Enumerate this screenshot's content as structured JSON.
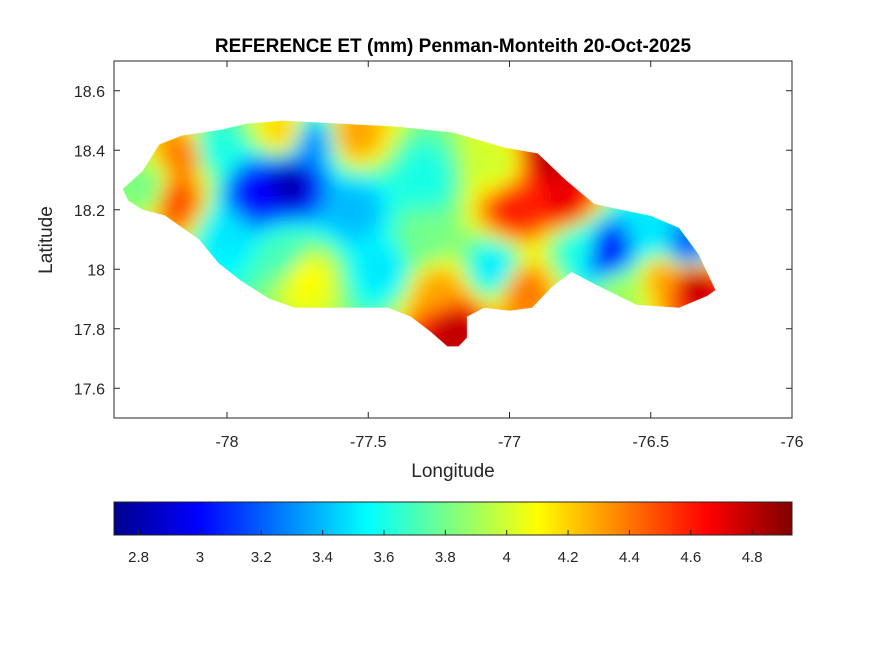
{
  "map": {
    "title": "REFERENCE ET (mm) Penman-Monteith 20-Oct-2025",
    "xlabel": "Longitude",
    "ylabel": "Latitude",
    "x_range": [
      -78.4,
      -76.0
    ],
    "y_range": [
      17.5,
      18.7
    ],
    "x_ticks": [
      -78,
      -77.5,
      -77,
      -76.5,
      -76
    ],
    "x_tick_labels": [
      "-78",
      "-77.5",
      "-77",
      "-76.5",
      "-76"
    ],
    "y_ticks": [
      17.6,
      17.8,
      18.0,
      18.2,
      18.4,
      18.6
    ],
    "y_tick_labels": [
      "17.6",
      "17.8",
      "18",
      "18.2",
      "18.4",
      "18.6"
    ],
    "colormap": "jet",
    "units": "mm",
    "region_outline": [
      [
        -78.37,
        18.27
      ],
      [
        -78.3,
        18.33
      ],
      [
        -78.24,
        18.42
      ],
      [
        -78.16,
        18.45
      ],
      [
        -78.02,
        18.47
      ],
      [
        -77.93,
        18.49
      ],
      [
        -77.8,
        18.5
      ],
      [
        -77.6,
        18.49
      ],
      [
        -77.4,
        18.48
      ],
      [
        -77.2,
        18.46
      ],
      [
        -77.02,
        18.41
      ],
      [
        -76.9,
        18.39
      ],
      [
        -76.8,
        18.3
      ],
      [
        -76.7,
        18.22
      ],
      [
        -76.6,
        18.2
      ],
      [
        -76.5,
        18.18
      ],
      [
        -76.4,
        18.14
      ],
      [
        -76.33,
        18.05
      ],
      [
        -76.27,
        17.93
      ],
      [
        -76.3,
        17.91
      ],
      [
        -76.4,
        17.87
      ],
      [
        -76.55,
        17.88
      ],
      [
        -76.7,
        17.95
      ],
      [
        -76.78,
        17.99
      ],
      [
        -76.85,
        17.94
      ],
      [
        -76.92,
        17.87
      ],
      [
        -77.0,
        17.86
      ],
      [
        -77.09,
        17.87
      ],
      [
        -77.15,
        17.84
      ],
      [
        -77.15,
        17.77
      ],
      [
        -77.18,
        17.74
      ],
      [
        -77.22,
        17.74
      ],
      [
        -77.28,
        17.79
      ],
      [
        -77.35,
        17.84
      ],
      [
        -77.43,
        17.87
      ],
      [
        -77.6,
        17.87
      ],
      [
        -77.76,
        17.87
      ],
      [
        -77.85,
        17.9
      ],
      [
        -77.95,
        17.96
      ],
      [
        -78.03,
        18.02
      ],
      [
        -78.1,
        18.1
      ],
      [
        -78.22,
        18.18
      ],
      [
        -78.3,
        18.2
      ],
      [
        -78.35,
        18.23
      ]
    ],
    "field_control_points": [
      {
        "lon": -78.28,
        "lat": 18.27,
        "value": 3.8
      },
      {
        "lon": -78.18,
        "lat": 18.23,
        "value": 4.5
      },
      {
        "lon": -78.15,
        "lat": 18.38,
        "value": 4.4
      },
      {
        "lon": -78.05,
        "lat": 18.4,
        "value": 3.6
      },
      {
        "lon": -78.0,
        "lat": 18.12,
        "value": 3.5
      },
      {
        "lon": -77.9,
        "lat": 18.25,
        "value": 3.0
      },
      {
        "lon": -77.78,
        "lat": 18.29,
        "value": 2.8
      },
      {
        "lon": -77.7,
        "lat": 18.42,
        "value": 3.3
      },
      {
        "lon": -77.8,
        "lat": 18.46,
        "value": 4.2
      },
      {
        "lon": -77.55,
        "lat": 18.45,
        "value": 4.3
      },
      {
        "lon": -77.55,
        "lat": 18.2,
        "value": 3.4
      },
      {
        "lon": -77.8,
        "lat": 18.05,
        "value": 3.7
      },
      {
        "lon": -77.72,
        "lat": 17.97,
        "value": 4.1
      },
      {
        "lon": -77.45,
        "lat": 18.0,
        "value": 3.5
      },
      {
        "lon": -77.3,
        "lat": 18.3,
        "value": 3.6
      },
      {
        "lon": -77.3,
        "lat": 18.1,
        "value": 3.8
      },
      {
        "lon": -77.25,
        "lat": 17.92,
        "value": 4.3
      },
      {
        "lon": -77.2,
        "lat": 17.8,
        "value": 4.8
      },
      {
        "lon": -77.05,
        "lat": 18.35,
        "value": 4.0
      },
      {
        "lon": -77.05,
        "lat": 18.0,
        "value": 3.5
      },
      {
        "lon": -76.95,
        "lat": 17.93,
        "value": 4.4
      },
      {
        "lon": -76.98,
        "lat": 18.2,
        "value": 4.6
      },
      {
        "lon": -76.85,
        "lat": 18.38,
        "value": 4.8
      },
      {
        "lon": -76.8,
        "lat": 18.22,
        "value": 4.7
      },
      {
        "lon": -76.75,
        "lat": 18.08,
        "value": 3.6
      },
      {
        "lon": -76.65,
        "lat": 18.06,
        "value": 3.0
      },
      {
        "lon": -76.5,
        "lat": 18.12,
        "value": 3.5
      },
      {
        "lon": -76.45,
        "lat": 17.97,
        "value": 4.3
      },
      {
        "lon": -76.35,
        "lat": 17.95,
        "value": 4.8
      },
      {
        "lon": -76.37,
        "lat": 18.07,
        "value": 3.2
      },
      {
        "lon": -76.6,
        "lat": 17.92,
        "value": 3.9
      }
    ]
  },
  "colorbar": {
    "range": [
      2.72,
      4.93
    ],
    "ticks": [
      2.8,
      3,
      3.2,
      3.4,
      3.6,
      3.8,
      4,
      4.2,
      4.4,
      4.6,
      4.8
    ],
    "tick_labels": [
      "2.8",
      "3",
      "3.2",
      "3.4",
      "3.6",
      "3.8",
      "4",
      "4.2",
      "4.4",
      "4.6",
      "4.8"
    ]
  }
}
